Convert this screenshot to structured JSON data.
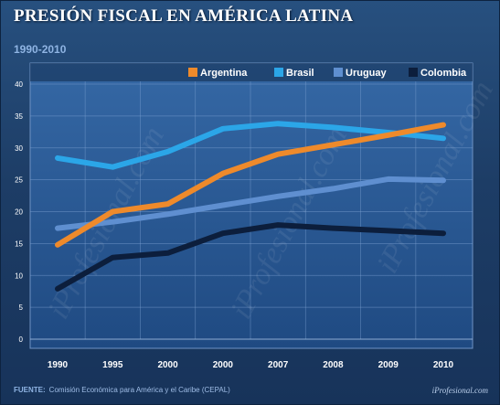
{
  "title": "PRESIÓN FISCAL EN AMÉRICA LATINA",
  "subtitle": "1990-2010",
  "source_label": "FUENTE:",
  "source_text": "Comisión Económica para América y el Caribe (CEPAL)",
  "credit": "iProfesional.com",
  "watermark": "iProfesional.com",
  "chart_data": {
    "type": "line",
    "title": "PRESIÓN FISCAL EN AMÉRICA LATINA",
    "subtitle": "1990-2010",
    "categories": [
      "1990",
      "1995",
      "2000",
      "2000",
      "2007",
      "2008",
      "2009",
      "2010"
    ],
    "ylim": [
      0,
      40
    ],
    "yticks": [
      0,
      5,
      10,
      15,
      20,
      25,
      30,
      35,
      40
    ],
    "grid": true,
    "legend_position": "top",
    "series": [
      {
        "name": "Argentina",
        "color": "#ee8a2b",
        "values": [
          14.8,
          20.0,
          21.2,
          26.0,
          29.0,
          30.5,
          32.0,
          33.6
        ]
      },
      {
        "name": "Brasil",
        "color": "#2ba6e8",
        "values": [
          28.4,
          27.0,
          29.4,
          33.0,
          33.8,
          33.2,
          32.4,
          31.5
        ]
      },
      {
        "name": "Uruguay",
        "color": "#5f8fd0",
        "values": [
          17.4,
          18.4,
          19.6,
          21.0,
          22.4,
          23.6,
          25.1,
          24.9
        ]
      },
      {
        "name": "Colombia",
        "color": "#0c1e3c",
        "values": [
          7.9,
          12.8,
          13.5,
          16.6,
          17.9,
          17.4,
          17.0,
          16.6
        ]
      }
    ]
  }
}
